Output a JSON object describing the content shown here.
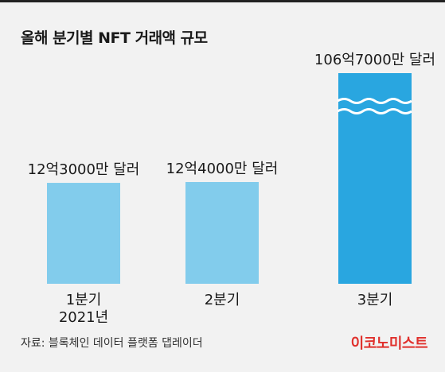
{
  "title": "올해 분기별 NFT 거래액 규모",
  "source": "자료: 블록체인 데이터 플랫폼 댑레이더",
  "brand": "이코노미스트",
  "colors": {
    "light_bar": "#82ccec",
    "dark_bar": "#29a6e0",
    "brand": "#e0302c",
    "wave": "#ffffff"
  },
  "chart_data": {
    "type": "bar",
    "title": "올해 분기별 NFT 거래액 규모",
    "categories": [
      "1분기\n2021년",
      "2분기",
      "3분기"
    ],
    "values": [
      1230000000,
      1240000000,
      10670000000
    ],
    "value_labels": [
      "12억3000만 달러",
      "12억4000만 달러",
      "106억7000만 달러"
    ],
    "unit": "달러",
    "axis_break": true,
    "broken_bar_index": 2,
    "grid": false,
    "legend": "none"
  }
}
